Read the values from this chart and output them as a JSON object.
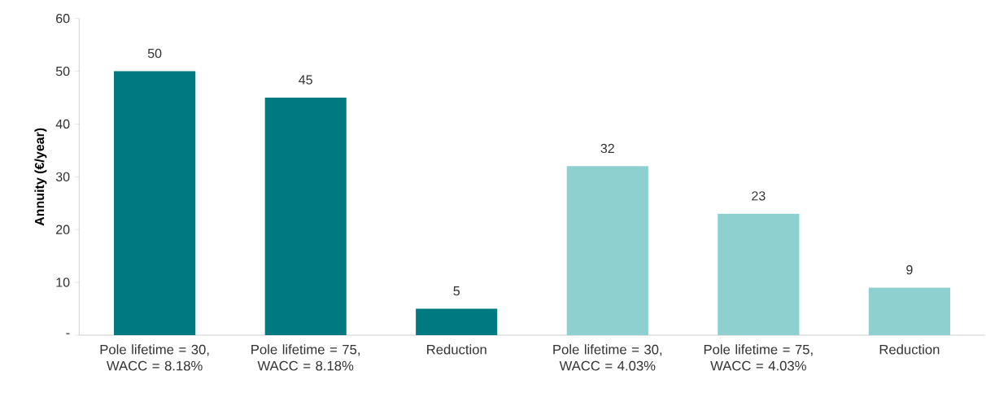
{
  "chart_data": {
    "type": "bar",
    "ylabel": "Annuity (€/year)",
    "categories": [
      "Pole lifetime = 30, WACC = 8.18%",
      "Pole lifetime = 75, WACC = 8.18%",
      "Reduction",
      "Pole lifetime = 30, WACC = 4.03%",
      "Pole lifetime = 75, WACC = 4.03%",
      "Reduction"
    ],
    "values": [
      50,
      45,
      5,
      32,
      23,
      9
    ],
    "colors": [
      "#007a80",
      "#007a80",
      "#007a80",
      "#8ecfd0",
      "#8ecfd0",
      "#8ecfd0"
    ],
    "ylim": [
      0,
      60
    ],
    "yticks": [
      {
        "value": 0,
        "label": "-"
      },
      10,
      20,
      30,
      40,
      50,
      60
    ],
    "data_labels": true,
    "grid": false
  }
}
